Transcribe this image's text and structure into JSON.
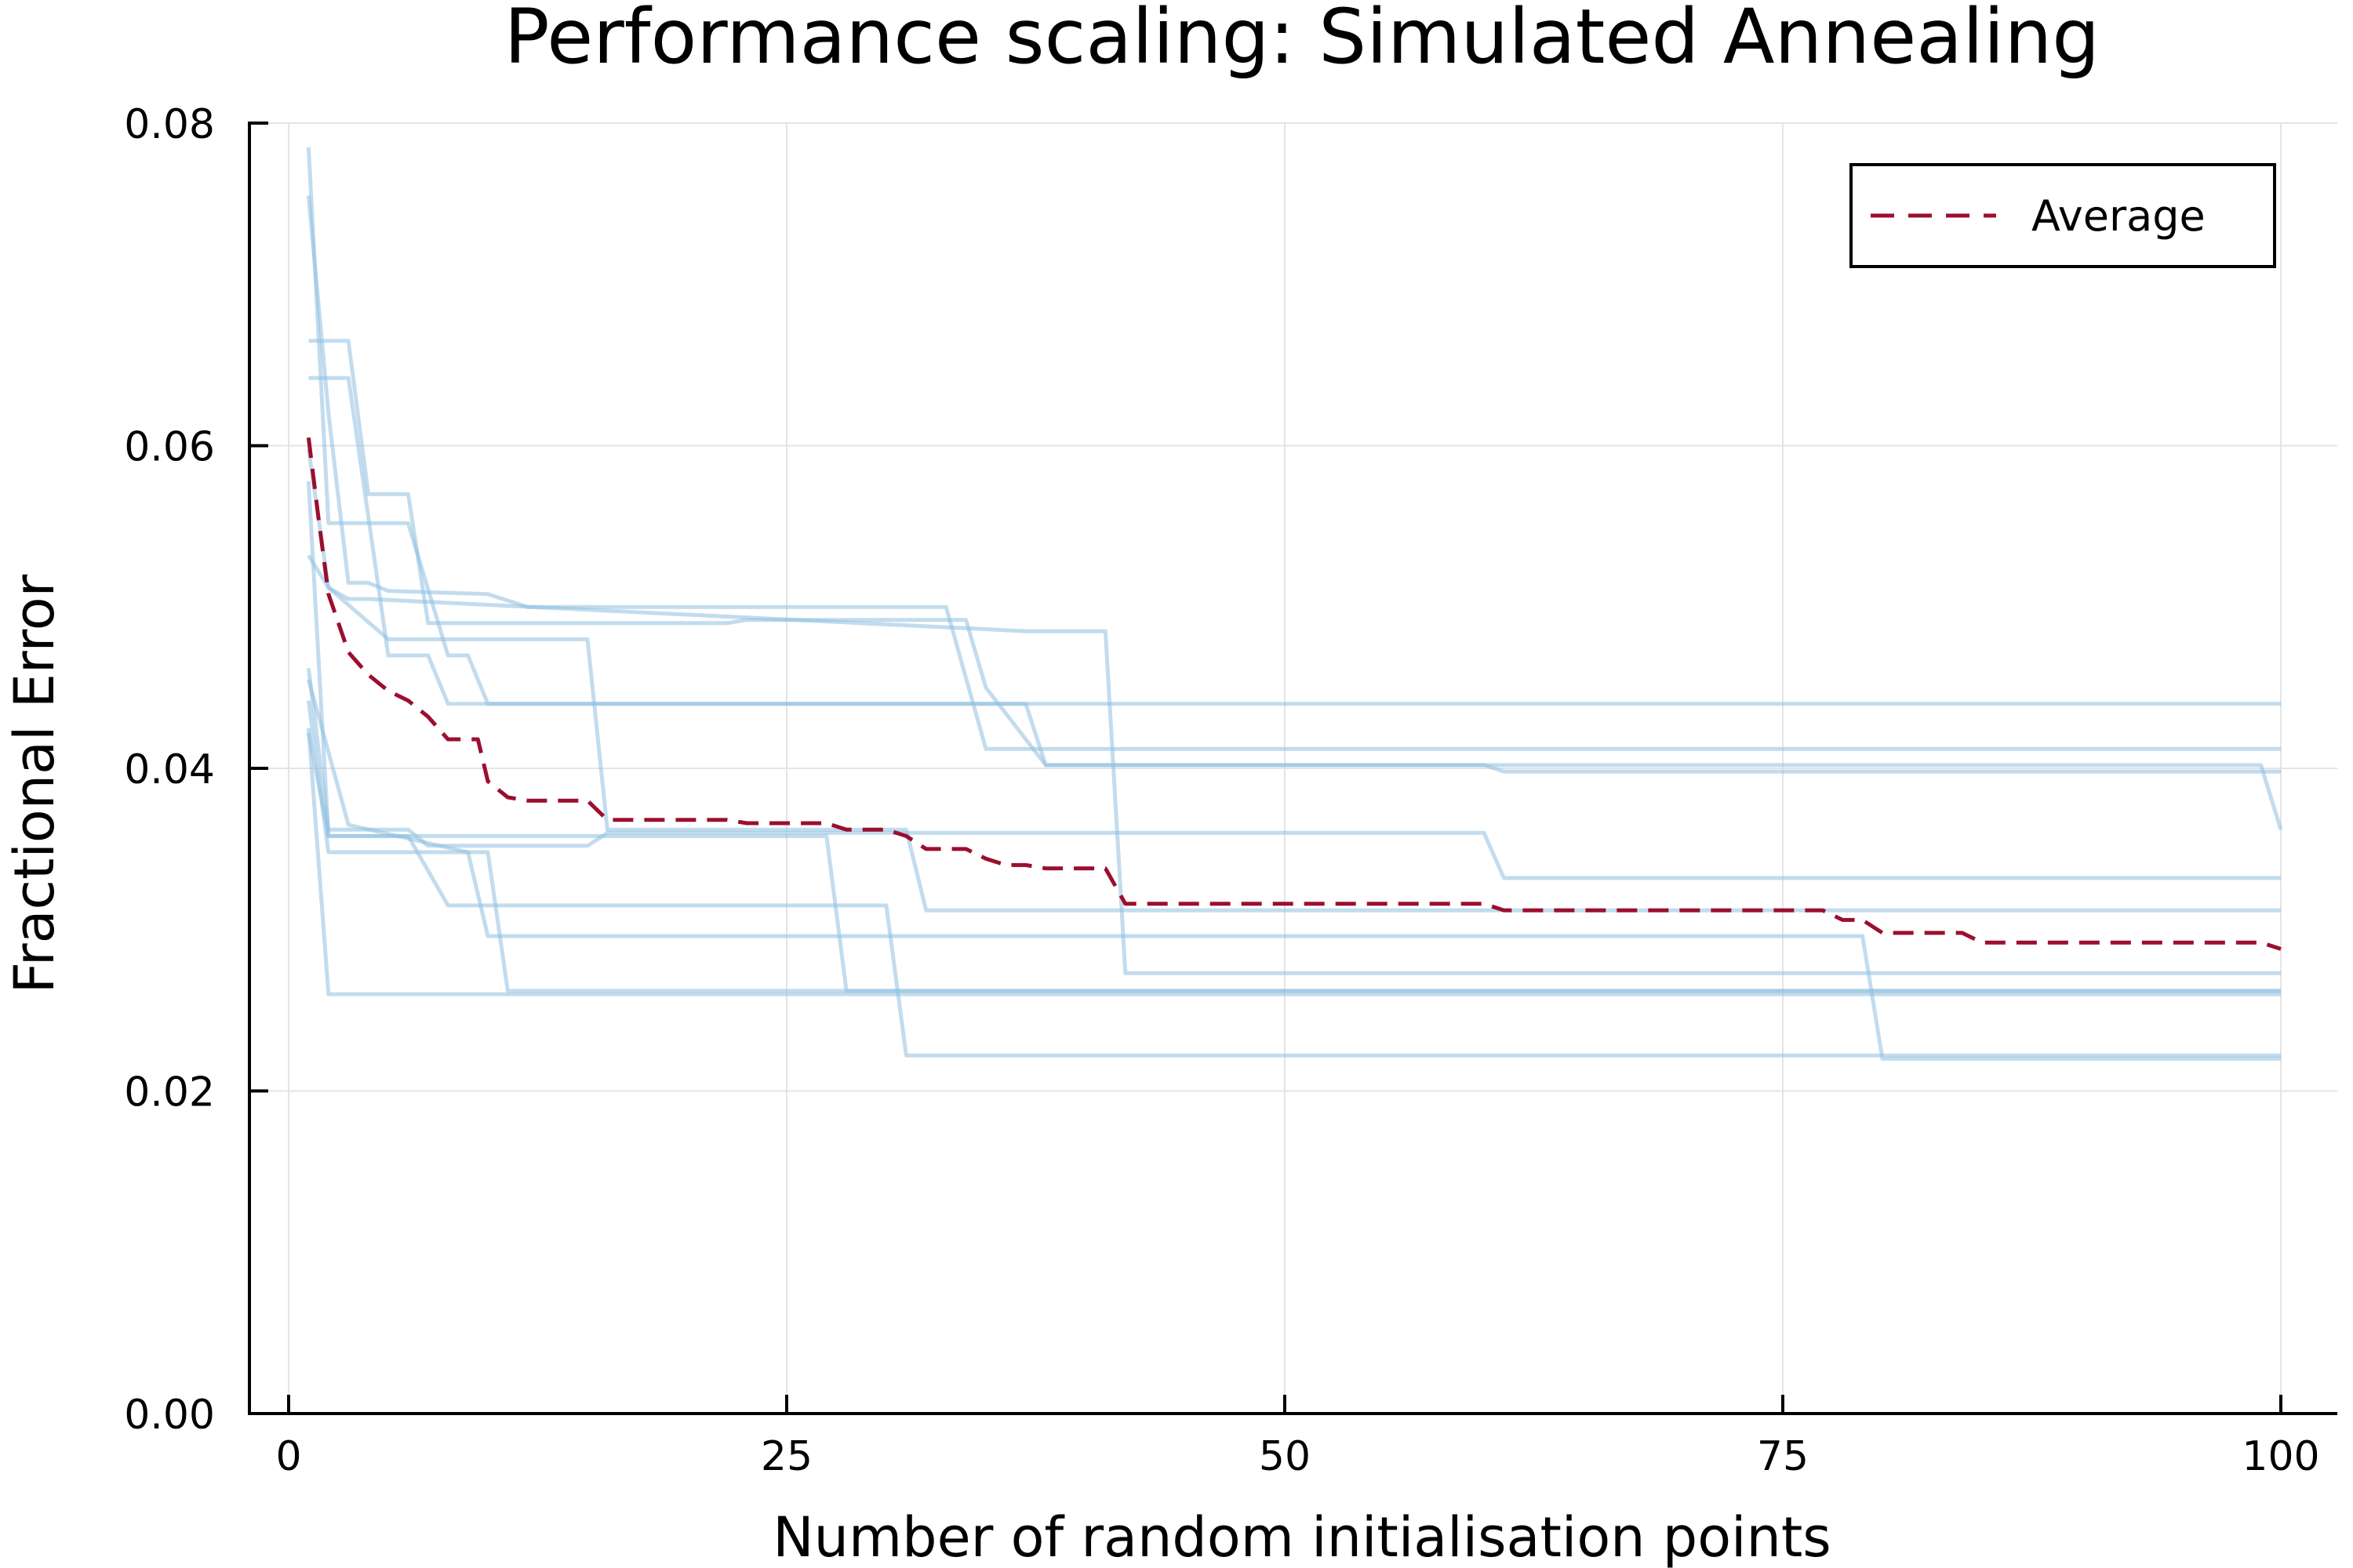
{
  "chart_data": {
    "type": "line",
    "title": "Performance scaling: Simulated Annealing",
    "xlabel": "Number of random initialisation points",
    "ylabel": "Fractional Error",
    "xlim": [
      0,
      100
    ],
    "ylim": [
      0,
      0.08
    ],
    "xticks": [
      0,
      25,
      50,
      75,
      100
    ],
    "xtick_labels": [
      "0",
      "25",
      "50",
      "75",
      "100"
    ],
    "yticks": [
      0,
      0.02,
      0.04,
      0.06,
      0.08
    ],
    "ytick_labels": [
      "0.00",
      "0.02",
      "0.04",
      "0.06",
      "0.08"
    ],
    "grid": true,
    "legend_position": "top-right",
    "run_color": "#8fbfe0",
    "average_color": "#9b0f2e",
    "runs": [
      {
        "x": [
          1,
          2,
          3,
          4,
          5,
          10,
          12,
          23,
          33,
          35,
          100
        ],
        "y": [
          0.0755,
          0.062,
          0.0515,
          0.0515,
          0.051,
          0.0508,
          0.05,
          0.05,
          0.05,
          0.0412,
          0.0412
        ]
      },
      {
        "x": [
          1,
          2,
          3,
          6,
          8,
          9,
          10,
          100
        ],
        "y": [
          0.0785,
          0.0552,
          0.0552,
          0.0552,
          0.047,
          0.047,
          0.044,
          0.044
        ]
      },
      {
        "x": [
          1,
          3,
          4,
          6,
          7,
          9,
          22,
          23,
          34,
          35,
          38,
          60,
          61,
          100
        ],
        "y": [
          0.0665,
          0.0665,
          0.057,
          0.057,
          0.049,
          0.049,
          0.049,
          0.0492,
          0.0492,
          0.045,
          0.0402,
          0.0402,
          0.0398,
          0.0398
        ]
      },
      {
        "x": [
          1,
          2,
          3,
          5,
          7,
          8,
          9,
          37,
          38,
          99,
          100
        ],
        "y": [
          0.0642,
          0.0642,
          0.0642,
          0.047,
          0.047,
          0.044,
          0.044,
          0.044,
          0.0402,
          0.0402,
          0.0362
        ]
      },
      {
        "x": [
          1,
          2,
          5,
          15,
          16,
          31,
          32,
          100
        ],
        "y": [
          0.0598,
          0.0512,
          0.048,
          0.048,
          0.0362,
          0.0362,
          0.0312,
          0.0312
        ]
      },
      {
        "x": [
          1,
          2,
          3,
          4,
          37,
          38,
          41,
          42,
          100
        ],
        "y": [
          0.0532,
          0.0512,
          0.0505,
          0.0505,
          0.0485,
          0.0485,
          0.0485,
          0.0273,
          0.0273
        ]
      },
      {
        "x": [
          1,
          2,
          6,
          7,
          15,
          16,
          60,
          61,
          100
        ],
        "y": [
          0.0462,
          0.0362,
          0.0362,
          0.0352,
          0.0352,
          0.036,
          0.036,
          0.0332,
          0.0332
        ]
      },
      {
        "x": [
          1,
          2,
          6,
          8,
          9,
          30,
          31,
          100
        ],
        "y": [
          0.0422,
          0.0358,
          0.0358,
          0.0315,
          0.0315,
          0.0315,
          0.0222,
          0.0222
        ]
      },
      {
        "x": [
          1,
          2,
          27,
          28,
          30,
          31,
          100
        ],
        "y": [
          0.0578,
          0.0358,
          0.0358,
          0.0262,
          0.0262,
          0.0262,
          0.0262
        ]
      },
      {
        "x": [
          1,
          2,
          100
        ],
        "y": [
          0.0425,
          0.026,
          0.026
        ]
      },
      {
        "x": [
          1,
          2,
          10,
          11,
          100
        ],
        "y": [
          0.0442,
          0.0348,
          0.0348,
          0.0262,
          0.0262
        ]
      },
      {
        "x": [
          1,
          3,
          9,
          10,
          79,
          80,
          100
        ],
        "y": [
          0.0455,
          0.0365,
          0.0348,
          0.0296,
          0.0296,
          0.022,
          0.022
        ]
      }
    ],
    "series": [
      {
        "name": "Average",
        "x": [
          1,
          1.5,
          2,
          2.5,
          3,
          3.5,
          4,
          5,
          6,
          7,
          8,
          9,
          9.5,
          10,
          11,
          12,
          13,
          14,
          15,
          16,
          17,
          18,
          19,
          20,
          21,
          22,
          23,
          24,
          25,
          26,
          27,
          28,
          29,
          30,
          31,
          32,
          33,
          34,
          35,
          36,
          37,
          38,
          39,
          40,
          41,
          42,
          43,
          44,
          45,
          50,
          55,
          59,
          60,
          61,
          62,
          70,
          75,
          76,
          77,
          78,
          79,
          80,
          81,
          84,
          85,
          90,
          99,
          100
        ],
        "y": [
          0.0605,
          0.0555,
          0.0508,
          0.049,
          0.0472,
          0.0465,
          0.0458,
          0.0448,
          0.0442,
          0.0432,
          0.0418,
          0.0418,
          0.0418,
          0.0392,
          0.0382,
          0.038,
          0.038,
          0.038,
          0.038,
          0.0368,
          0.0368,
          0.0368,
          0.0368,
          0.0368,
          0.0368,
          0.0368,
          0.0366,
          0.0366,
          0.0366,
          0.0366,
          0.0366,
          0.0362,
          0.0362,
          0.0362,
          0.0358,
          0.035,
          0.035,
          0.035,
          0.0344,
          0.034,
          0.034,
          0.0338,
          0.0338,
          0.0338,
          0.0338,
          0.0316,
          0.0316,
          0.0316,
          0.0316,
          0.0316,
          0.0316,
          0.0316,
          0.0316,
          0.0312,
          0.0312,
          0.0312,
          0.0312,
          0.0312,
          0.0312,
          0.0306,
          0.0306,
          0.0298,
          0.0298,
          0.0298,
          0.0292,
          0.0292,
          0.0292,
          0.0288
        ]
      }
    ]
  }
}
